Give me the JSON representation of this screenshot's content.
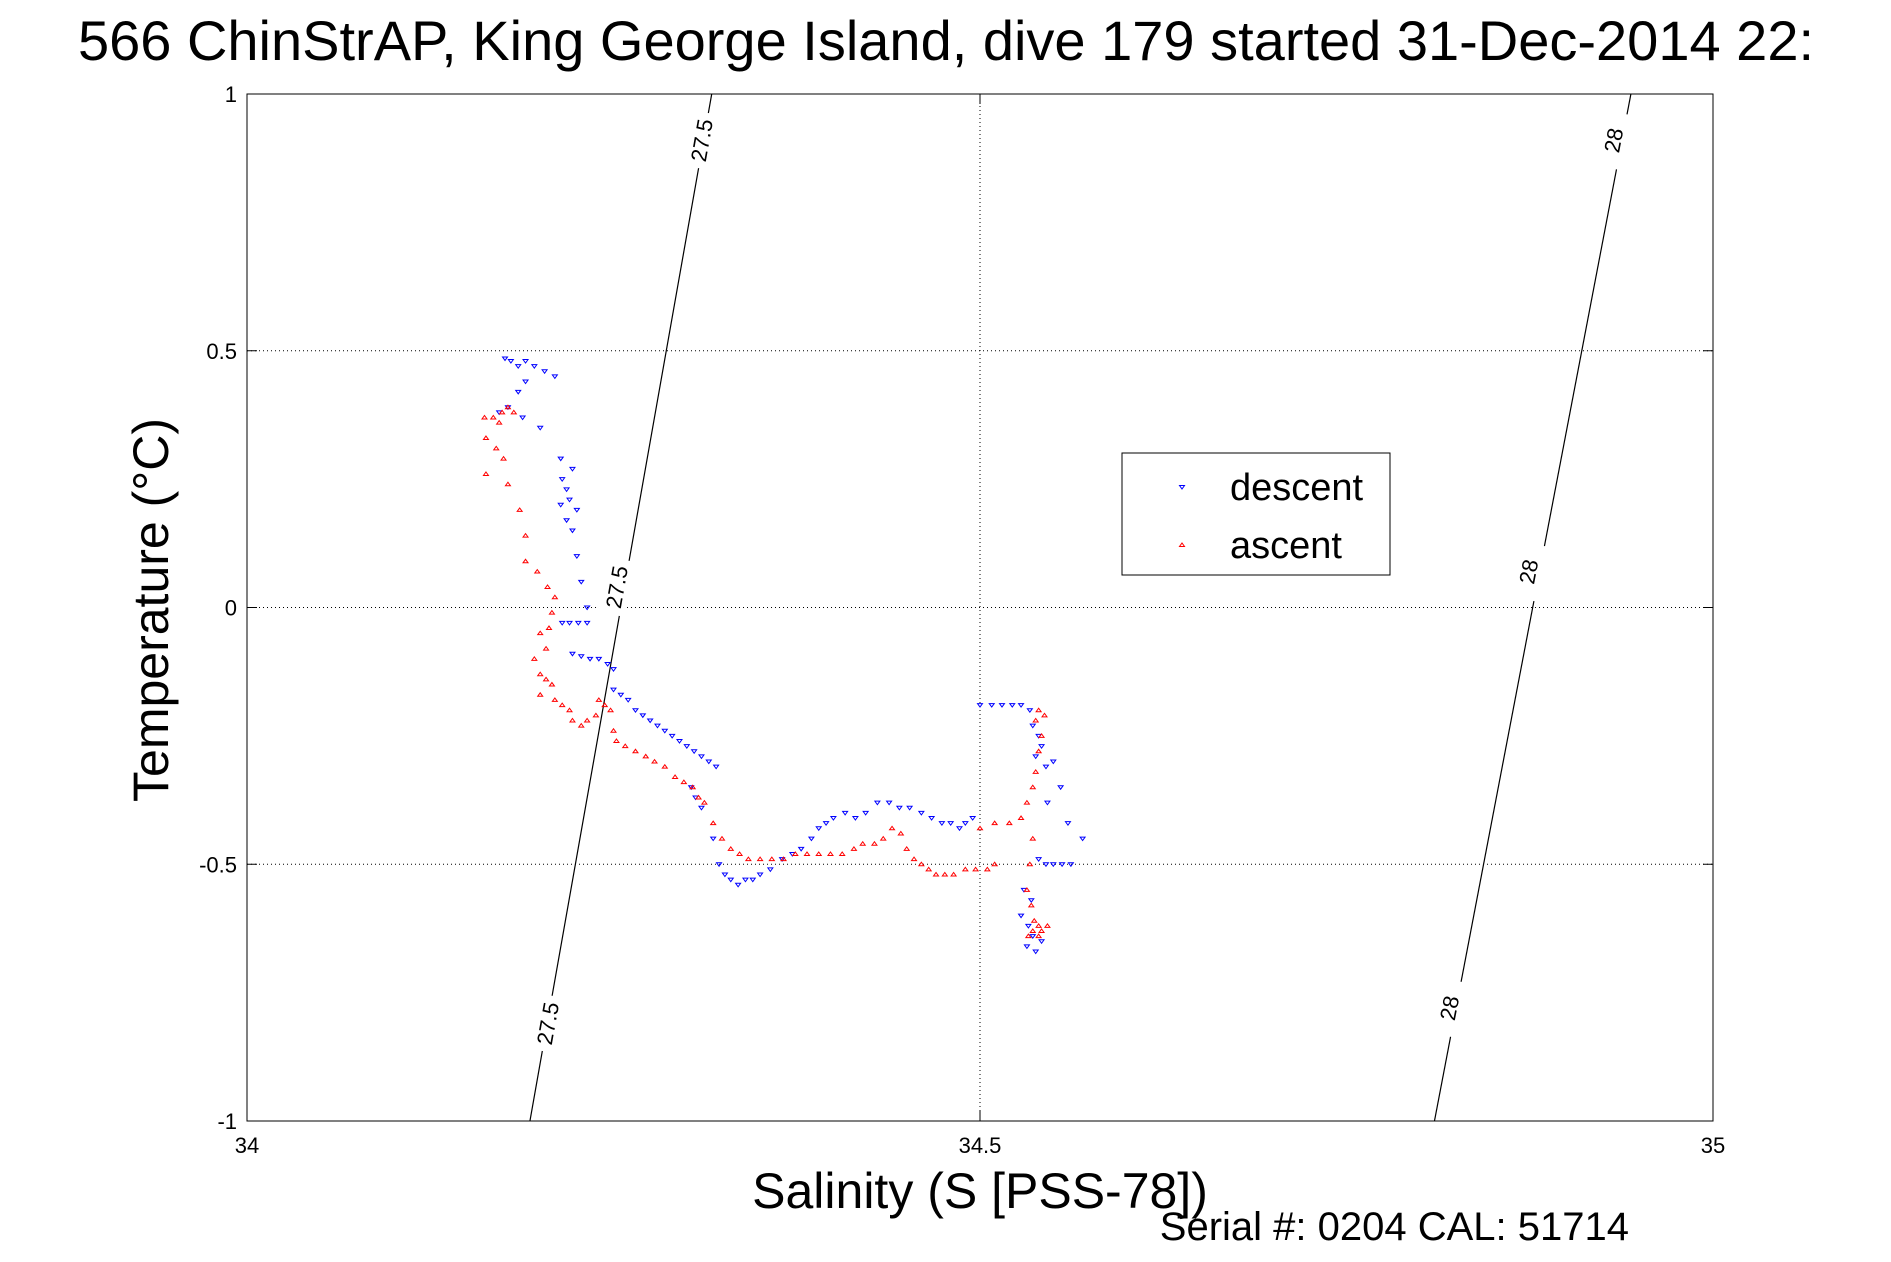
{
  "chart_data": {
    "type": "scatter",
    "title": "566 ChinStrAP, King George Island, dive 179 started 31-Dec-2014 22:",
    "xlabel": "Salinity (S [PSS-78])",
    "ylabel": "Temperature (°C)",
    "xlim": [
      34,
      35
    ],
    "ylim": [
      -1,
      1
    ],
    "xticks": [
      34,
      34.5,
      35
    ],
    "xtick_labels": [
      "34",
      "34.5",
      "35"
    ],
    "yticks": [
      -1,
      -0.5,
      0,
      0.5,
      1
    ],
    "ytick_labels": [
      "-1",
      "-0.5",
      "0",
      "0.5",
      "1"
    ],
    "grid": true,
    "legend_position": "upper-right-center",
    "footer": "Serial #: 0204  CAL: 51714",
    "isopycnals": [
      {
        "label": "27.5",
        "points": [
          [
            34.193,
            -1.0
          ],
          [
            34.317,
            1.0
          ]
        ],
        "label_positions": [
          [
            34.205,
            -0.81
          ],
          [
            34.252,
            0.04
          ],
          [
            34.31,
            0.91
          ]
        ]
      },
      {
        "label": "28",
        "points": [
          [
            34.81,
            -1.0
          ],
          [
            34.944,
            1.0
          ]
        ],
        "label_positions": [
          [
            34.82,
            -0.78
          ],
          [
            34.874,
            0.07
          ],
          [
            34.932,
            0.91
          ]
        ]
      }
    ],
    "series": [
      {
        "name": "descent",
        "color": "#0000ff",
        "marker": "triangle-down",
        "points": [
          [
            34.176,
            0.485
          ],
          [
            34.18,
            0.48
          ],
          [
            34.185,
            0.47
          ],
          [
            34.19,
            0.48
          ],
          [
            34.196,
            0.47
          ],
          [
            34.203,
            0.46
          ],
          [
            34.21,
            0.45
          ],
          [
            34.19,
            0.44
          ],
          [
            34.185,
            0.42
          ],
          [
            34.178,
            0.39
          ],
          [
            34.172,
            0.38
          ],
          [
            34.188,
            0.37
          ],
          [
            34.2,
            0.35
          ],
          [
            34.214,
            0.29
          ],
          [
            34.222,
            0.27
          ],
          [
            34.215,
            0.25
          ],
          [
            34.218,
            0.23
          ],
          [
            34.22,
            0.21
          ],
          [
            34.214,
            0.2
          ],
          [
            34.225,
            0.19
          ],
          [
            34.218,
            0.17
          ],
          [
            34.222,
            0.15
          ],
          [
            34.225,
            0.1
          ],
          [
            34.228,
            0.05
          ],
          [
            34.232,
            0.0
          ],
          [
            34.215,
            -0.03
          ],
          [
            34.22,
            -0.03
          ],
          [
            34.226,
            -0.03
          ],
          [
            34.232,
            -0.03
          ],
          [
            34.222,
            -0.09
          ],
          [
            34.228,
            -0.095
          ],
          [
            34.234,
            -0.1
          ],
          [
            34.24,
            -0.1
          ],
          [
            34.246,
            -0.11
          ],
          [
            34.25,
            -0.12
          ],
          [
            34.25,
            -0.16
          ],
          [
            34.255,
            -0.17
          ],
          [
            34.26,
            -0.18
          ],
          [
            34.265,
            -0.2
          ],
          [
            34.27,
            -0.21
          ],
          [
            34.275,
            -0.22
          ],
          [
            34.28,
            -0.23
          ],
          [
            34.285,
            -0.24
          ],
          [
            34.29,
            -0.25
          ],
          [
            34.295,
            -0.26
          ],
          [
            34.3,
            -0.27
          ],
          [
            34.305,
            -0.28
          ],
          [
            34.31,
            -0.29
          ],
          [
            34.315,
            -0.3
          ],
          [
            34.32,
            -0.31
          ],
          [
            34.303,
            -0.35
          ],
          [
            34.306,
            -0.37
          ],
          [
            34.31,
            -0.39
          ],
          [
            34.318,
            -0.45
          ],
          [
            34.322,
            -0.5
          ],
          [
            34.326,
            -0.52
          ],
          [
            34.33,
            -0.53
          ],
          [
            34.335,
            -0.54
          ],
          [
            34.34,
            -0.53
          ],
          [
            34.345,
            -0.53
          ],
          [
            34.35,
            -0.52
          ],
          [
            34.357,
            -0.51
          ],
          [
            34.365,
            -0.49
          ],
          [
            34.372,
            -0.48
          ],
          [
            34.378,
            -0.47
          ],
          [
            34.385,
            -0.45
          ],
          [
            34.39,
            -0.43
          ],
          [
            34.395,
            -0.42
          ],
          [
            34.4,
            -0.41
          ],
          [
            34.408,
            -0.4
          ],
          [
            34.415,
            -0.41
          ],
          [
            34.422,
            -0.4
          ],
          [
            34.43,
            -0.38
          ],
          [
            34.438,
            -0.38
          ],
          [
            34.445,
            -0.39
          ],
          [
            34.452,
            -0.39
          ],
          [
            34.46,
            -0.4
          ],
          [
            34.467,
            -0.41
          ],
          [
            34.474,
            -0.42
          ],
          [
            34.48,
            -0.42
          ],
          [
            34.486,
            -0.43
          ],
          [
            34.49,
            -0.42
          ],
          [
            34.495,
            -0.41
          ],
          [
            34.5,
            -0.19
          ],
          [
            34.508,
            -0.19
          ],
          [
            34.515,
            -0.19
          ],
          [
            34.522,
            -0.19
          ],
          [
            34.528,
            -0.19
          ],
          [
            34.534,
            -0.2
          ],
          [
            34.536,
            -0.23
          ],
          [
            34.54,
            -0.25
          ],
          [
            34.542,
            -0.27
          ],
          [
            34.538,
            -0.29
          ],
          [
            34.545,
            -0.31
          ],
          [
            34.55,
            -0.3
          ],
          [
            34.555,
            -0.35
          ],
          [
            34.546,
            -0.38
          ],
          [
            34.56,
            -0.42
          ],
          [
            34.57,
            -0.45
          ],
          [
            34.54,
            -0.49
          ],
          [
            34.545,
            -0.5
          ],
          [
            34.55,
            -0.5
          ],
          [
            34.556,
            -0.5
          ],
          [
            34.562,
            -0.5
          ],
          [
            34.53,
            -0.55
          ],
          [
            34.535,
            -0.57
          ],
          [
            34.528,
            -0.6
          ],
          [
            34.533,
            -0.62
          ],
          [
            34.536,
            -0.64
          ],
          [
            34.532,
            -0.66
          ],
          [
            34.538,
            -0.67
          ],
          [
            34.542,
            -0.65
          ]
        ]
      },
      {
        "name": "ascent",
        "color": "#ff0000",
        "marker": "triangle-up",
        "points": [
          [
            34.162,
            0.37
          ],
          [
            34.168,
            0.37
          ],
          [
            34.174,
            0.38
          ],
          [
            34.178,
            0.39
          ],
          [
            34.182,
            0.38
          ],
          [
            34.172,
            0.36
          ],
          [
            34.163,
            0.33
          ],
          [
            34.17,
            0.31
          ],
          [
            34.175,
            0.29
          ],
          [
            34.163,
            0.26
          ],
          [
            34.178,
            0.24
          ],
          [
            34.186,
            0.19
          ],
          [
            34.19,
            0.14
          ],
          [
            34.19,
            0.09
          ],
          [
            34.198,
            0.07
          ],
          [
            34.205,
            0.04
          ],
          [
            34.21,
            0.02
          ],
          [
            34.208,
            -0.01
          ],
          [
            34.206,
            -0.04
          ],
          [
            34.2,
            -0.05
          ],
          [
            34.204,
            -0.08
          ],
          [
            34.196,
            -0.1
          ],
          [
            34.2,
            -0.13
          ],
          [
            34.204,
            -0.14
          ],
          [
            34.208,
            -0.15
          ],
          [
            34.2,
            -0.17
          ],
          [
            34.21,
            -0.18
          ],
          [
            34.215,
            -0.19
          ],
          [
            34.22,
            -0.2
          ],
          [
            34.222,
            -0.22
          ],
          [
            34.228,
            -0.23
          ],
          [
            34.232,
            -0.22
          ],
          [
            34.238,
            -0.21
          ],
          [
            34.24,
            -0.18
          ],
          [
            34.244,
            -0.19
          ],
          [
            34.248,
            -0.2
          ],
          [
            34.25,
            -0.24
          ],
          [
            34.252,
            -0.26
          ],
          [
            34.258,
            -0.27
          ],
          [
            34.265,
            -0.28
          ],
          [
            34.272,
            -0.29
          ],
          [
            34.278,
            -0.3
          ],
          [
            34.285,
            -0.31
          ],
          [
            34.292,
            -0.33
          ],
          [
            34.298,
            -0.34
          ],
          [
            34.304,
            -0.35
          ],
          [
            34.308,
            -0.37
          ],
          [
            34.312,
            -0.38
          ],
          [
            34.318,
            -0.42
          ],
          [
            34.324,
            -0.45
          ],
          [
            34.33,
            -0.47
          ],
          [
            34.336,
            -0.48
          ],
          [
            34.342,
            -0.49
          ],
          [
            34.35,
            -0.49
          ],
          [
            34.358,
            -0.49
          ],
          [
            34.366,
            -0.49
          ],
          [
            34.374,
            -0.48
          ],
          [
            34.382,
            -0.48
          ],
          [
            34.39,
            -0.48
          ],
          [
            34.398,
            -0.48
          ],
          [
            34.406,
            -0.48
          ],
          [
            34.414,
            -0.47
          ],
          [
            34.42,
            -0.46
          ],
          [
            34.428,
            -0.46
          ],
          [
            34.434,
            -0.45
          ],
          [
            34.44,
            -0.43
          ],
          [
            34.446,
            -0.44
          ],
          [
            34.45,
            -0.47
          ],
          [
            34.455,
            -0.49
          ],
          [
            34.46,
            -0.5
          ],
          [
            34.465,
            -0.51
          ],
          [
            34.47,
            -0.52
          ],
          [
            34.476,
            -0.52
          ],
          [
            34.482,
            -0.52
          ],
          [
            34.49,
            -0.51
          ],
          [
            34.497,
            -0.51
          ],
          [
            34.505,
            -0.51
          ],
          [
            34.51,
            -0.5
          ],
          [
            34.5,
            -0.43
          ],
          [
            34.51,
            -0.42
          ],
          [
            34.52,
            -0.42
          ],
          [
            34.528,
            -0.41
          ],
          [
            34.532,
            -0.38
          ],
          [
            34.536,
            -0.35
          ],
          [
            34.538,
            -0.32
          ],
          [
            34.54,
            -0.28
          ],
          [
            34.542,
            -0.25
          ],
          [
            34.538,
            -0.22
          ],
          [
            34.54,
            -0.2
          ],
          [
            34.544,
            -0.21
          ],
          [
            34.536,
            -0.45
          ],
          [
            34.534,
            -0.5
          ],
          [
            34.532,
            -0.55
          ],
          [
            34.535,
            -0.58
          ],
          [
            34.537,
            -0.61
          ],
          [
            34.54,
            -0.62
          ],
          [
            34.542,
            -0.63
          ],
          [
            34.536,
            -0.63
          ],
          [
            34.533,
            -0.64
          ],
          [
            34.546,
            -0.62
          ],
          [
            34.54,
            -0.64
          ]
        ]
      }
    ]
  }
}
